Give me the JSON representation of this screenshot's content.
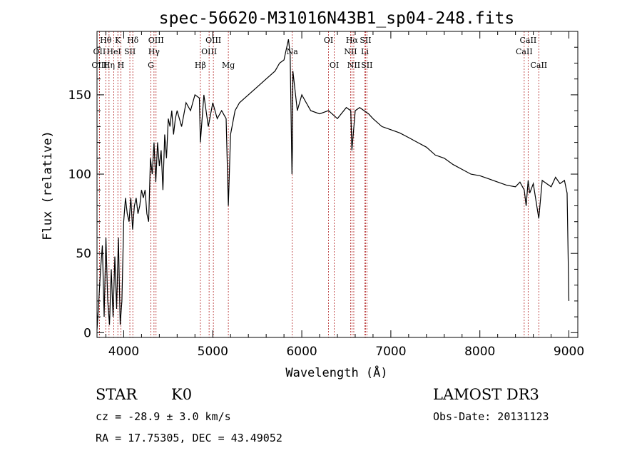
{
  "chart_data": {
    "type": "line",
    "title": "spec-56620-M31016N43B1_sp04-248.fits",
    "xlabel": "Wavelength (Å)",
    "ylabel": "Flux (relative)",
    "xlim": [
      3700,
      9100
    ],
    "ylim": [
      -3,
      190
    ],
    "xticks": [
      4000,
      5000,
      6000,
      7000,
      8000,
      9000
    ],
    "yticks": [
      0,
      50,
      100,
      150
    ],
    "series": [
      {
        "name": "flux",
        "x": [
          3700,
          3720,
          3740,
          3760,
          3780,
          3800,
          3820,
          3840,
          3860,
          3880,
          3900,
          3920,
          3940,
          3960,
          3980,
          4000,
          4020,
          4040,
          4060,
          4080,
          4100,
          4120,
          4140,
          4160,
          4180,
          4200,
          4220,
          4240,
          4260,
          4280,
          4300,
          4320,
          4340,
          4360,
          4380,
          4400,
          4420,
          4440,
          4460,
          4480,
          4500,
          4520,
          4540,
          4560,
          4580,
          4600,
          4650,
          4700,
          4750,
          4800,
          4850,
          4861,
          4900,
          4950,
          5000,
          5050,
          5100,
          5150,
          5175,
          5200,
          5250,
          5300,
          5400,
          5500,
          5600,
          5700,
          5750,
          5800,
          5850,
          5870,
          5890,
          5896,
          5900,
          5950,
          6000,
          6050,
          6100,
          6200,
          6300,
          6400,
          6500,
          6550,
          6563,
          6600,
          6650,
          6700,
          6750,
          6800,
          6900,
          7000,
          7100,
          7200,
          7300,
          7400,
          7500,
          7600,
          7700,
          7800,
          7900,
          8000,
          8100,
          8200,
          8300,
          8400,
          8450,
          8498,
          8520,
          8542,
          8560,
          8600,
          8662,
          8700,
          8750,
          8800,
          8850,
          8900,
          8950,
          8980,
          9000
        ],
        "values": [
          2,
          20,
          40,
          55,
          10,
          60,
          20,
          5,
          40,
          10,
          48,
          15,
          60,
          5,
          20,
          70,
          85,
          75,
          70,
          85,
          65,
          80,
          85,
          75,
          80,
          90,
          85,
          90,
          75,
          70,
          110,
          100,
          120,
          95,
          120,
          105,
          115,
          90,
          125,
          110,
          135,
          130,
          140,
          125,
          135,
          140,
          130,
          145,
          140,
          150,
          148,
          120,
          150,
          130,
          145,
          135,
          140,
          135,
          80,
          125,
          140,
          145,
          150,
          155,
          160,
          165,
          170,
          172,
          185,
          175,
          100,
          120,
          165,
          140,
          150,
          145,
          140,
          138,
          140,
          135,
          142,
          140,
          115,
          140,
          142,
          140,
          138,
          135,
          130,
          128,
          126,
          123,
          120,
          117,
          112,
          110,
          106,
          103,
          100,
          99,
          97,
          95,
          93,
          92,
          95,
          90,
          80,
          96,
          88,
          94,
          72,
          96,
          94,
          92,
          98,
          94,
          96,
          88,
          20
        ]
      }
    ]
  },
  "spectral_lines": [
    {
      "name": "Hθ",
      "wl": 3798,
      "row": 0
    },
    {
      "name": "OII",
      "wl": 3727,
      "row": 1
    },
    {
      "name": "OIII",
      "wl": 3727,
      "row": 2
    },
    {
      "name": "K",
      "wl": 3934,
      "row": 0
    },
    {
      "name": "HeI",
      "wl": 3889,
      "row": 1
    },
    {
      "name": "Hη",
      "wl": 3835,
      "row": 2
    },
    {
      "name": "H",
      "wl": 3968,
      "row": 2
    },
    {
      "name": "Hδ",
      "wl": 4102,
      "row": 0
    },
    {
      "name": "SII",
      "wl": 4069,
      "row": 1
    },
    {
      "name": "OIII",
      "wl": 4363,
      "row": 0
    },
    {
      "name": "Hγ",
      "wl": 4340,
      "row": 1
    },
    {
      "name": "G",
      "wl": 4305,
      "row": 2
    },
    {
      "name": "Hβ",
      "wl": 4861,
      "row": 2
    },
    {
      "name": "OIII",
      "wl": 5007,
      "row": 0
    },
    {
      "name": "OIII",
      "wl": 4959,
      "row": 1
    },
    {
      "name": "Mg",
      "wl": 5175,
      "row": 2
    },
    {
      "name": "Na",
      "wl": 5893,
      "row": 1
    },
    {
      "name": "OI",
      "wl": 6300,
      "row": 0
    },
    {
      "name": "OI",
      "wl": 6364,
      "row": 2
    },
    {
      "name": "Hα",
      "wl": 6563,
      "row": 0
    },
    {
      "name": "SII",
      "wl": 6716,
      "row": 0
    },
    {
      "name": "NII",
      "wl": 6548,
      "row": 1
    },
    {
      "name": "Li",
      "wl": 6708,
      "row": 1
    },
    {
      "name": "NII",
      "wl": 6584,
      "row": 2
    },
    {
      "name": "SII",
      "wl": 6731,
      "row": 2
    },
    {
      "name": "CaII",
      "wl": 8542,
      "row": 0
    },
    {
      "name": "CaII",
      "wl": 8498,
      "row": 1
    },
    {
      "name": "CaII",
      "wl": 8662,
      "row": 2
    }
  ],
  "info": {
    "class": "STAR",
    "subclass": "K0",
    "survey": "LAMOST DR3",
    "cz": "cz = -28.9 ± 3.0 km/s",
    "obs_date": "Obs-Date: 20131123",
    "coords": "RA =  17.75305, DEC =  43.49052"
  },
  "colors": {
    "line_marker": "#b22222",
    "spectrum": "#000000"
  }
}
